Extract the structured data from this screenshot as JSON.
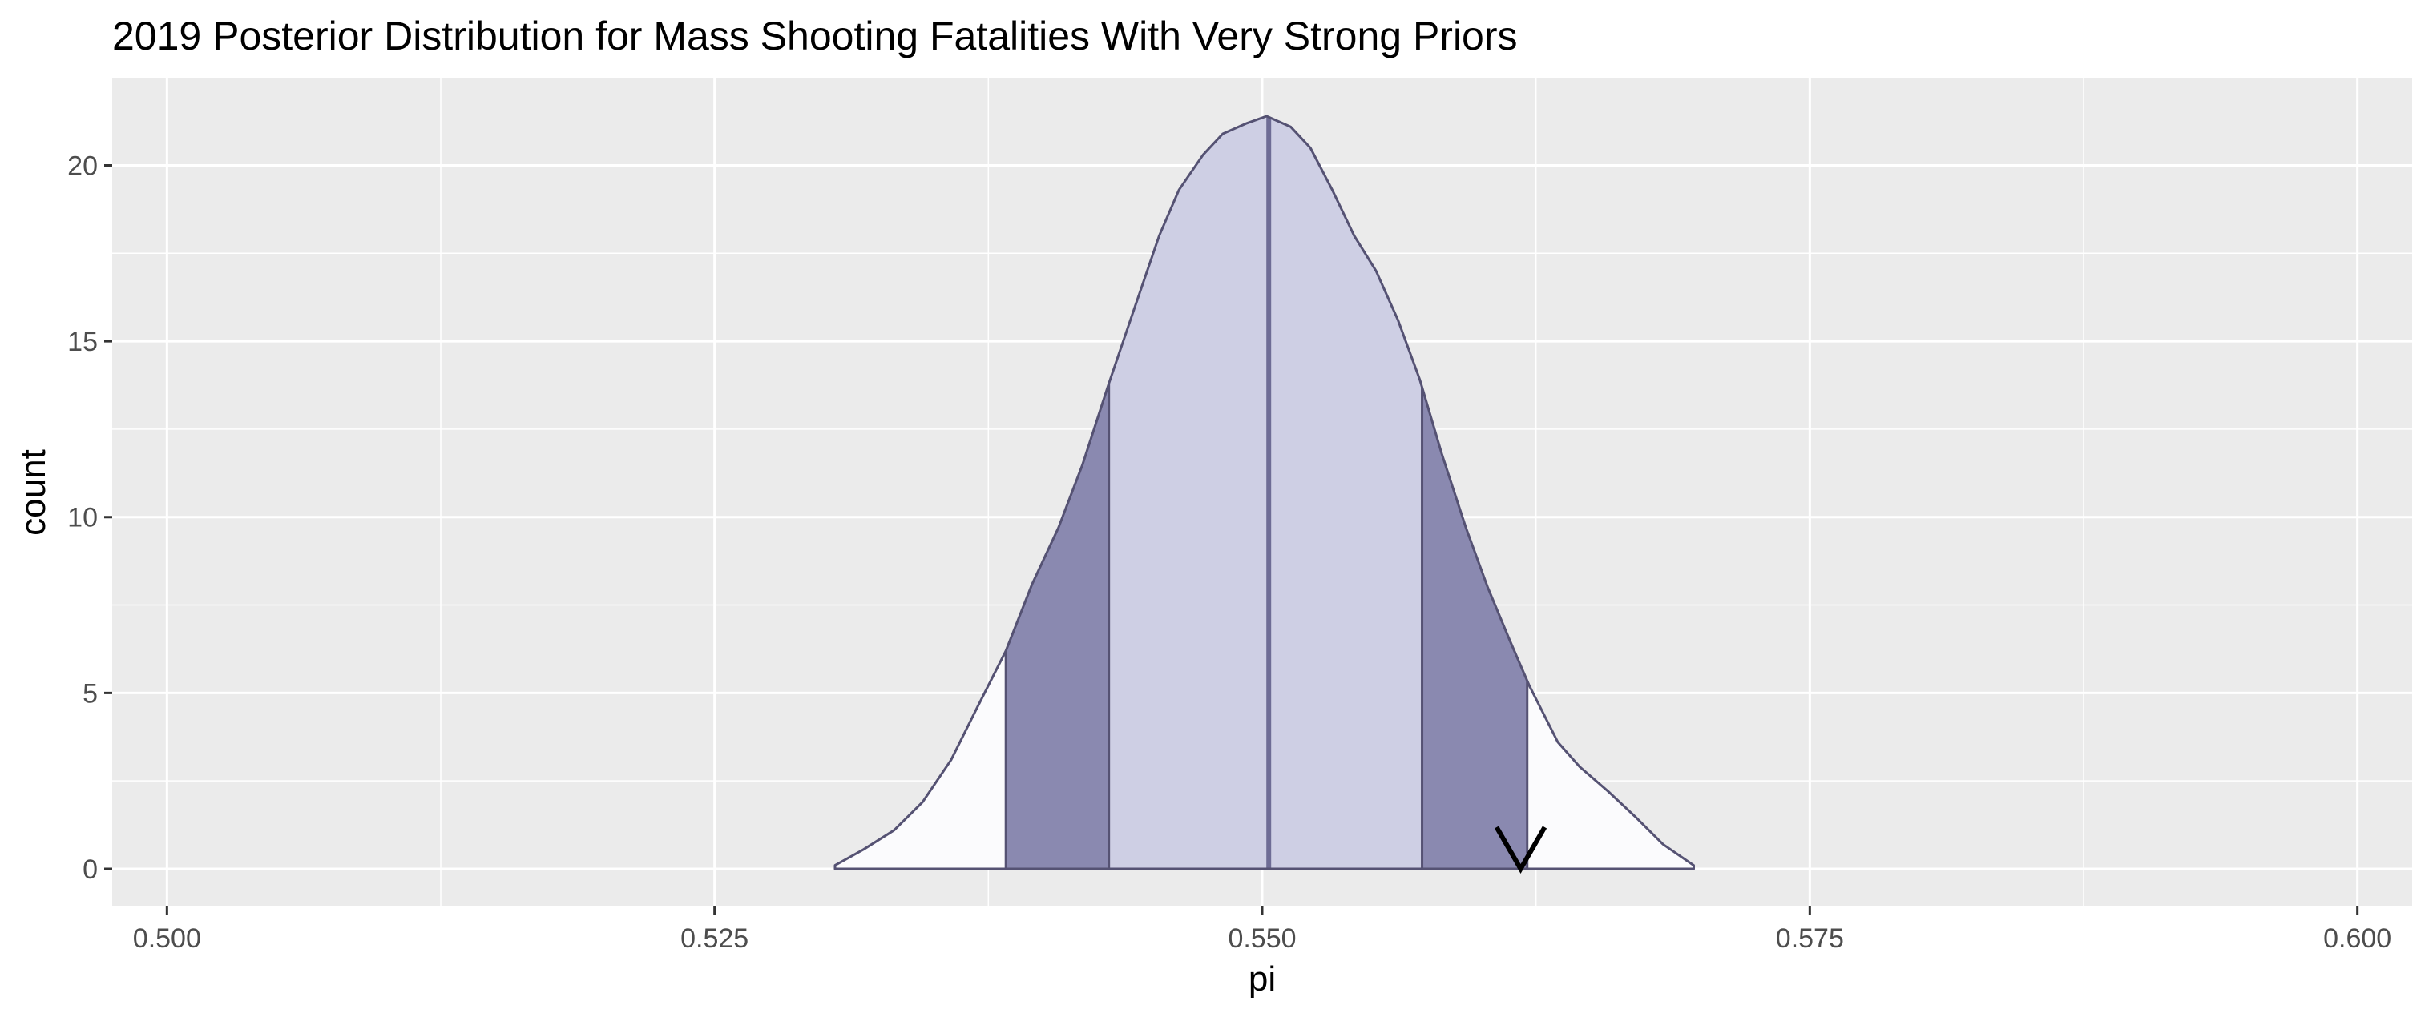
{
  "chart_data": {
    "type": "area",
    "title": "2019  Posterior Distribution for Mass Shooting Fatalities With Very Strong Priors",
    "xlabel": "pi",
    "ylabel": "count",
    "xlim": [
      0.4975,
      0.6025
    ],
    "ylim": [
      -1.07,
      22.47
    ],
    "x_ticks": [
      0.5,
      0.525,
      0.55,
      0.575,
      0.6
    ],
    "x_tick_labels": [
      "0.500",
      "0.525",
      "0.550",
      "0.575",
      "0.600"
    ],
    "x_minor_ticks": [
      0.5125,
      0.5375,
      0.5625,
      0.5875
    ],
    "y_ticks": [
      0,
      5,
      10,
      15,
      20
    ],
    "y_tick_labels": [
      "0",
      "5",
      "10",
      "15",
      "20"
    ],
    "y_minor_ticks": [
      2.5,
      7.5,
      12.5,
      17.5
    ],
    "grid": true,
    "density": {
      "x": [
        0.5305,
        0.5318,
        0.5332,
        0.5345,
        0.5358,
        0.537,
        0.5383,
        0.5395,
        0.5407,
        0.5418,
        0.543,
        0.5442,
        0.5453,
        0.5462,
        0.5473,
        0.5482,
        0.5493,
        0.5502,
        0.5513,
        0.5522,
        0.5532,
        0.5542,
        0.5552,
        0.5562,
        0.5572,
        0.5582,
        0.5593,
        0.5603,
        0.5613,
        0.5622,
        0.5635,
        0.5645,
        0.5658,
        0.567,
        0.5683,
        0.5697
      ],
      "y": [
        0.1,
        0.55,
        1.1,
        1.9,
        3.1,
        4.6,
        6.2,
        8.1,
        9.7,
        11.5,
        13.8,
        16.0,
        18.0,
        19.3,
        20.3,
        20.9,
        21.2,
        21.4,
        21.1,
        20.5,
        19.3,
        18.0,
        17.0,
        15.6,
        13.9,
        11.8,
        9.7,
        8.0,
        6.5,
        5.2,
        3.6,
        2.9,
        2.2,
        1.5,
        0.7,
        0.1
      ]
    },
    "x_range": [
      0.5305,
      0.5697
    ],
    "outer_interval": [
      0.5383,
      0.5621
    ],
    "inner_interval": [
      0.543,
      0.5573
    ],
    "median": 0.5503,
    "observed_marker": 0.5618,
    "colors": {
      "panel": "#ebebeb",
      "grid": "#ffffff",
      "outline": "#555273",
      "tail_fill": "#fbfbfd",
      "outer_fill": "#8a89b0",
      "inner_fill": "#cecfe4",
      "median_line": "#6e6c95",
      "marker": "#000000"
    }
  }
}
